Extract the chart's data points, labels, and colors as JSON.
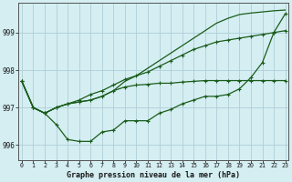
{
  "title": "Graphe pression niveau de la mer (hPa)",
  "bg_color": "#d4eef2",
  "grid_color": "#b0ced8",
  "line_color": "#1a5c1a",
  "marker_color": "#1a5c1a",
  "x_ticks": [
    0,
    1,
    2,
    3,
    4,
    5,
    6,
    7,
    8,
    9,
    10,
    11,
    12,
    13,
    14,
    15,
    16,
    17,
    18,
    19,
    20,
    21,
    22,
    23
  ],
  "ylim": [
    995.6,
    999.8
  ],
  "yticks": [
    996,
    997,
    998,
    999
  ],
  "series": [
    {
      "y": [
        997.7,
        997.0,
        996.85,
        996.55,
        996.15,
        996.1,
        996.1,
        996.35,
        996.4,
        996.65,
        996.65,
        996.65,
        996.85,
        996.95,
        997.1,
        997.2,
        997.3,
        997.3,
        997.35,
        997.5,
        997.8,
        998.2,
        999.0,
        999.5
      ],
      "marker": true,
      "lw": 0.9
    },
    {
      "y": [
        997.7,
        997.0,
        996.85,
        997.0,
        997.1,
        997.15,
        997.2,
        997.3,
        997.45,
        997.7,
        997.85,
        998.05,
        998.25,
        998.45,
        998.65,
        998.85,
        999.05,
        999.25,
        999.38,
        999.48,
        999.52,
        999.55,
        999.58,
        999.6
      ],
      "marker": false,
      "lw": 0.9
    },
    {
      "y": [
        997.7,
        997.0,
        996.85,
        997.0,
        997.1,
        997.15,
        997.2,
        997.3,
        997.45,
        997.55,
        997.6,
        997.62,
        997.65,
        997.65,
        997.68,
        997.7,
        997.72,
        997.72,
        997.72,
        997.72,
        997.72,
        997.72,
        997.72,
        997.72
      ],
      "marker": true,
      "lw": 0.9
    },
    {
      "y": [
        997.7,
        997.0,
        996.85,
        997.0,
        997.1,
        997.2,
        997.35,
        997.45,
        997.6,
        997.75,
        997.85,
        997.95,
        998.1,
        998.25,
        998.4,
        998.55,
        998.65,
        998.75,
        998.8,
        998.85,
        998.9,
        998.95,
        999.0,
        999.05
      ],
      "marker": true,
      "lw": 0.9
    }
  ]
}
